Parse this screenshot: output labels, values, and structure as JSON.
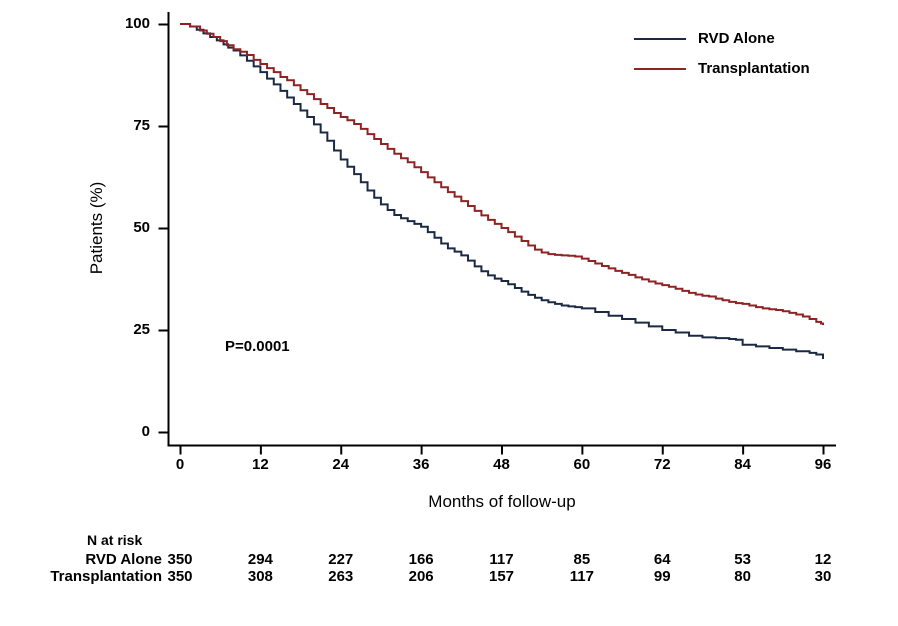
{
  "chart_data": {
    "type": "line",
    "subtype": "kaplan-meier-step",
    "title": "",
    "xlabel": "Months of follow-up",
    "ylabel": "Patients (%)",
    "xlim": [
      0,
      96
    ],
    "ylim": [
      0,
      100
    ],
    "x_ticks": [
      0,
      12,
      24,
      36,
      48,
      60,
      72,
      84,
      96
    ],
    "y_ticks": [
      100,
      75,
      50,
      25,
      0
    ],
    "grid": false,
    "legend_position": "top-right",
    "annotation": "P=0.0001",
    "axis_color": "#000000",
    "series": [
      {
        "name": "RVD Alone",
        "color": "#1b2a44",
        "steps": [
          [
            0,
            100
          ],
          [
            1.5,
            99.4
          ],
          [
            2.5,
            98.6
          ],
          [
            3.5,
            97.7
          ],
          [
            4.5,
            96.8
          ],
          [
            5.5,
            96
          ],
          [
            6.5,
            95
          ],
          [
            7.2,
            94.2
          ],
          [
            8,
            93.5
          ],
          [
            9,
            92.3
          ],
          [
            10,
            91
          ],
          [
            11,
            89.6
          ],
          [
            12,
            88.2
          ],
          [
            13,
            86.6
          ],
          [
            14,
            85.2
          ],
          [
            15,
            83.6
          ],
          [
            16,
            82
          ],
          [
            17,
            80.4
          ],
          [
            18,
            78.8
          ],
          [
            19,
            77.2
          ],
          [
            20,
            75.4
          ],
          [
            21,
            73.4
          ],
          [
            22,
            71.4
          ],
          [
            23,
            69
          ],
          [
            24,
            66.8
          ],
          [
            25,
            65
          ],
          [
            26,
            63.2
          ],
          [
            27,
            61.2
          ],
          [
            28,
            59.2
          ],
          [
            29,
            57.4
          ],
          [
            30,
            55.8
          ],
          [
            31,
            54.4
          ],
          [
            32,
            53.2
          ],
          [
            33,
            52.4
          ],
          [
            34,
            51.7
          ],
          [
            35,
            51
          ],
          [
            36,
            50.3
          ],
          [
            37,
            49
          ],
          [
            38,
            47.6
          ],
          [
            39,
            46.2
          ],
          [
            40,
            45
          ],
          [
            41,
            44.2
          ],
          [
            42,
            43.3
          ],
          [
            43,
            42
          ],
          [
            44,
            40.6
          ],
          [
            45,
            39.4
          ],
          [
            46,
            38.4
          ],
          [
            47,
            37.6
          ],
          [
            48,
            37
          ],
          [
            49,
            36.2
          ],
          [
            50,
            35.3
          ],
          [
            51,
            34.4
          ],
          [
            52,
            33.6
          ],
          [
            53,
            32.9
          ],
          [
            54,
            32.3
          ],
          [
            55,
            31.8
          ],
          [
            56,
            31.4
          ],
          [
            57,
            31
          ],
          [
            58,
            30.8
          ],
          [
            59,
            30.6
          ],
          [
            60,
            30.3
          ],
          [
            62,
            29.4
          ],
          [
            64,
            28.5
          ],
          [
            66,
            27.7
          ],
          [
            68,
            26.8
          ],
          [
            70,
            25.9
          ],
          [
            72,
            25
          ],
          [
            74,
            24.4
          ],
          [
            76,
            23.6
          ],
          [
            78,
            23.2
          ],
          [
            80,
            23
          ],
          [
            82,
            22.8
          ],
          [
            83,
            22.6
          ],
          [
            84,
            21.4
          ],
          [
            86,
            21
          ],
          [
            88,
            20.6
          ],
          [
            90,
            20.2
          ],
          [
            92,
            19.8
          ],
          [
            94,
            19.4
          ],
          [
            95,
            19
          ],
          [
            96,
            17.9
          ]
        ]
      },
      {
        "name": "Transplantation",
        "color": "#8e2323",
        "steps": [
          [
            0,
            100
          ],
          [
            1.5,
            99.4
          ],
          [
            3,
            98.4
          ],
          [
            4,
            97.6
          ],
          [
            5,
            96.8
          ],
          [
            6,
            95.8
          ],
          [
            7,
            94.8
          ],
          [
            8,
            93.8
          ],
          [
            9,
            93.2
          ],
          [
            10,
            92.4
          ],
          [
            11,
            91.2
          ],
          [
            12,
            90.2
          ],
          [
            13,
            89.2
          ],
          [
            14,
            88.2
          ],
          [
            15,
            87
          ],
          [
            16,
            86.2
          ],
          [
            17,
            85
          ],
          [
            18,
            83.8
          ],
          [
            19,
            82.8
          ],
          [
            20,
            81.6
          ],
          [
            21,
            80.4
          ],
          [
            22,
            79.4
          ],
          [
            23,
            78.2
          ],
          [
            24,
            77.2
          ],
          [
            25,
            76.4
          ],
          [
            26,
            75.5
          ],
          [
            27,
            74.3
          ],
          [
            28,
            73
          ],
          [
            29,
            71.8
          ],
          [
            30,
            70.6
          ],
          [
            31,
            69.4
          ],
          [
            32,
            68.2
          ],
          [
            33,
            67.1
          ],
          [
            34,
            66.1
          ],
          [
            35,
            64.9
          ],
          [
            36,
            63.7
          ],
          [
            37,
            62.4
          ],
          [
            38,
            61.2
          ],
          [
            39,
            60
          ],
          [
            40,
            58.8
          ],
          [
            41,
            57.7
          ],
          [
            42,
            56.6
          ],
          [
            43,
            55.4
          ],
          [
            44,
            54.2
          ],
          [
            45,
            53.1
          ],
          [
            46,
            52
          ],
          [
            47,
            51
          ],
          [
            48,
            50
          ],
          [
            49,
            49
          ],
          [
            50,
            47.9
          ],
          [
            51,
            46.8
          ],
          [
            52,
            45.7
          ],
          [
            53,
            44.7
          ],
          [
            54,
            44
          ],
          [
            55,
            43.6
          ],
          [
            56,
            43.4
          ],
          [
            57,
            43.3
          ],
          [
            58,
            43.2
          ],
          [
            59,
            43
          ],
          [
            60,
            42.5
          ],
          [
            61,
            41.9
          ],
          [
            62,
            41.3
          ],
          [
            63,
            40.7
          ],
          [
            64,
            40.1
          ],
          [
            65,
            39.5
          ],
          [
            66,
            39
          ],
          [
            67,
            38.5
          ],
          [
            68,
            37.9
          ],
          [
            69,
            37.4
          ],
          [
            70,
            36.9
          ],
          [
            71,
            36.4
          ],
          [
            72,
            36
          ],
          [
            73,
            35.6
          ],
          [
            74,
            35.1
          ],
          [
            75,
            34.6
          ],
          [
            76,
            34.1
          ],
          [
            77,
            33.7
          ],
          [
            78,
            33.4
          ],
          [
            79,
            33.2
          ],
          [
            80,
            32.7
          ],
          [
            81,
            32.3
          ],
          [
            82,
            31.9
          ],
          [
            83,
            31.6
          ],
          [
            84,
            31.4
          ],
          [
            85,
            31
          ],
          [
            86,
            30.6
          ],
          [
            87,
            30.3
          ],
          [
            88,
            30.1
          ],
          [
            89,
            29.9
          ],
          [
            90,
            29.6
          ],
          [
            91,
            29.2
          ],
          [
            92,
            28.8
          ],
          [
            93,
            28.3
          ],
          [
            94,
            27.7
          ],
          [
            95,
            27
          ],
          [
            95.7,
            26.6
          ],
          [
            96,
            26.2
          ]
        ]
      }
    ],
    "risk_table": {
      "title": "N at risk",
      "time_points": [
        0,
        12,
        24,
        36,
        48,
        60,
        72,
        84,
        96
      ],
      "rows": [
        {
          "label": "RVD Alone",
          "values": [
            350,
            294,
            227,
            166,
            117,
            85,
            64,
            53,
            12
          ]
        },
        {
          "label": "Transplantation",
          "values": [
            350,
            308,
            263,
            206,
            157,
            117,
            99,
            80,
            30
          ]
        }
      ]
    }
  }
}
